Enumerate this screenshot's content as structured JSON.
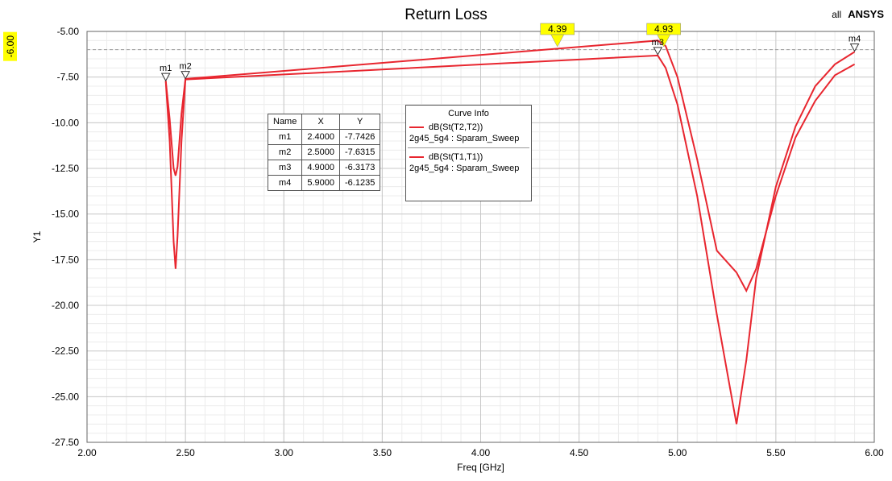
{
  "title": "Return Loss",
  "brand": {
    "prefix": "all",
    "name": "ANSYS"
  },
  "colors": {
    "curve": "#e8262f",
    "marker_flag": "#ffff00",
    "grid": "#c8c8c8"
  },
  "chart_data": {
    "type": "line",
    "title": "Return Loss",
    "xlabel": "Freq [GHz]",
    "ylabel": "Y1",
    "xlim": [
      2.0,
      6.0
    ],
    "ylim": [
      -27.5,
      -5.0
    ],
    "x_ticks": [
      "2.00",
      "2.50",
      "3.00",
      "3.50",
      "4.00",
      "4.50",
      "5.00",
      "5.50",
      "6.00"
    ],
    "y_ticks": [
      "-5.00",
      "-7.50",
      "-10.00",
      "-12.50",
      "-15.00",
      "-17.50",
      "-20.00",
      "-22.50",
      "-25.00",
      "-27.50"
    ],
    "grid": true,
    "series": [
      {
        "name": "dB(St(T2,T2))",
        "x": [
          2.4,
          2.42,
          2.44,
          2.45,
          2.46,
          2.48,
          2.5,
          4.9,
          4.94,
          5.0,
          5.1,
          5.2,
          5.3,
          5.35,
          5.4,
          5.5,
          5.6,
          5.7,
          5.8,
          5.9
        ],
        "y": [
          -7.7,
          -9.8,
          -12.5,
          -12.9,
          -12.4,
          -9.5,
          -7.6,
          -5.5,
          -5.8,
          -7.5,
          -12.0,
          -17.0,
          -18.2,
          -19.2,
          -18.0,
          -14.0,
          -10.8,
          -8.8,
          -7.4,
          -6.8
        ]
      },
      {
        "name": "dB(St(T1,T1))",
        "x": [
          2.4,
          2.42,
          2.44,
          2.45,
          2.46,
          2.48,
          2.5,
          4.9,
          4.94,
          5.0,
          5.1,
          5.2,
          5.3,
          5.35,
          5.4,
          5.5,
          5.6,
          5.7,
          5.8,
          5.9
        ],
        "y": [
          -7.74,
          -11.0,
          -16.5,
          -18.0,
          -16.2,
          -11.0,
          -7.63,
          -6.32,
          -7.0,
          -9.0,
          -14.0,
          -20.5,
          -26.5,
          -23.0,
          -18.5,
          -13.5,
          -10.2,
          -8.0,
          -6.8,
          -6.12
        ]
      }
    ],
    "reference_line": {
      "y": -6.0,
      "label": "-6.00"
    },
    "crossing_flags": [
      {
        "x": 4.39,
        "label": "4.39"
      },
      {
        "x": 4.93,
        "label": "4.93"
      }
    ],
    "markers": [
      {
        "name": "m1",
        "x": 2.4,
        "y": -7.7426
      },
      {
        "name": "m2",
        "x": 2.5,
        "y": -7.6315
      },
      {
        "name": "m3",
        "x": 4.9,
        "y": -6.3173
      },
      {
        "name": "m4",
        "x": 5.9,
        "y": -6.1235
      }
    ]
  },
  "marker_table": {
    "headers": [
      "Name",
      "X",
      "Y"
    ],
    "rows": [
      [
        "m1",
        "2.4000",
        "-7.7426"
      ],
      [
        "m2",
        "2.5000",
        "-7.6315"
      ],
      [
        "m3",
        "4.9000",
        "-6.3173"
      ],
      [
        "m4",
        "5.9000",
        "-6.1235"
      ]
    ]
  },
  "curve_info": {
    "header": "Curve Info",
    "entries": [
      {
        "name": "dB(St(T2,T2))",
        "source": "2g45_5g4 : Sparam_Sweep"
      },
      {
        "name": "dB(St(T1,T1))",
        "source": "2g45_5g4 : Sparam_Sweep"
      }
    ]
  }
}
